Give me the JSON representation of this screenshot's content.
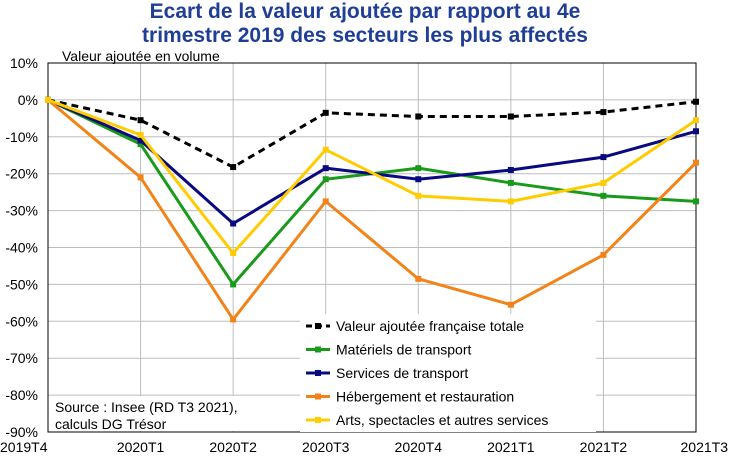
{
  "chart_data": {
    "type": "line",
    "title_line1": "Ecart de la valeur ajoutée par rapport au 4e",
    "title_line2": "trimestre 2019 des secteurs les plus affectés",
    "ylabel": "Valeur ajoutée en volume",
    "source_line1": "Source : Insee (RD T3 2021),",
    "source_line2": "calculs DG Trésor",
    "categories": [
      "2019T4",
      "2020T1",
      "2020T2",
      "2020T3",
      "2020T4",
      "2021T1",
      "2021T2",
      "2021T3"
    ],
    "ylim": [
      -90,
      10
    ],
    "yticks": [
      10,
      0,
      -10,
      -20,
      -30,
      -40,
      -50,
      -60,
      -70,
      -80,
      -90
    ],
    "ytick_labels": [
      "10%",
      "0%",
      "-10%",
      "-20%",
      "-30%",
      "-40%",
      "-50%",
      "-60%",
      "-70%",
      "-80%",
      "-90%"
    ],
    "grid": true,
    "legend_position": "bottom-right",
    "series": [
      {
        "name": "Valeur ajoutée française totale",
        "color": "#000000",
        "dashed": true,
        "values": [
          0,
          -5.5,
          -18.2,
          -3.5,
          -4.5,
          -4.5,
          -3.3,
          -0.5
        ]
      },
      {
        "name": "Matériels de transport",
        "color": "#1a9a1a",
        "dashed": false,
        "values": [
          0,
          -12,
          -50,
          -21.5,
          -18.5,
          -22.5,
          -26,
          -27.5
        ]
      },
      {
        "name": "Services de transport",
        "color": "#0a0a80",
        "dashed": false,
        "values": [
          0,
          -11,
          -33.5,
          -18.5,
          -21.5,
          -19,
          -15.5,
          -8.5
        ]
      },
      {
        "name": "Hébergement et restauration",
        "color": "#f28318",
        "dashed": false,
        "values": [
          0,
          -21,
          -59.5,
          -27.5,
          -48.5,
          -55.5,
          -42,
          -17
        ]
      },
      {
        "name": "Arts, spectacles et autres services",
        "color": "#ffcc00",
        "dashed": false,
        "values": [
          0,
          -9.5,
          -41.5,
          -13.5,
          -26,
          -27.5,
          -22.5,
          -5.5
        ]
      }
    ]
  }
}
